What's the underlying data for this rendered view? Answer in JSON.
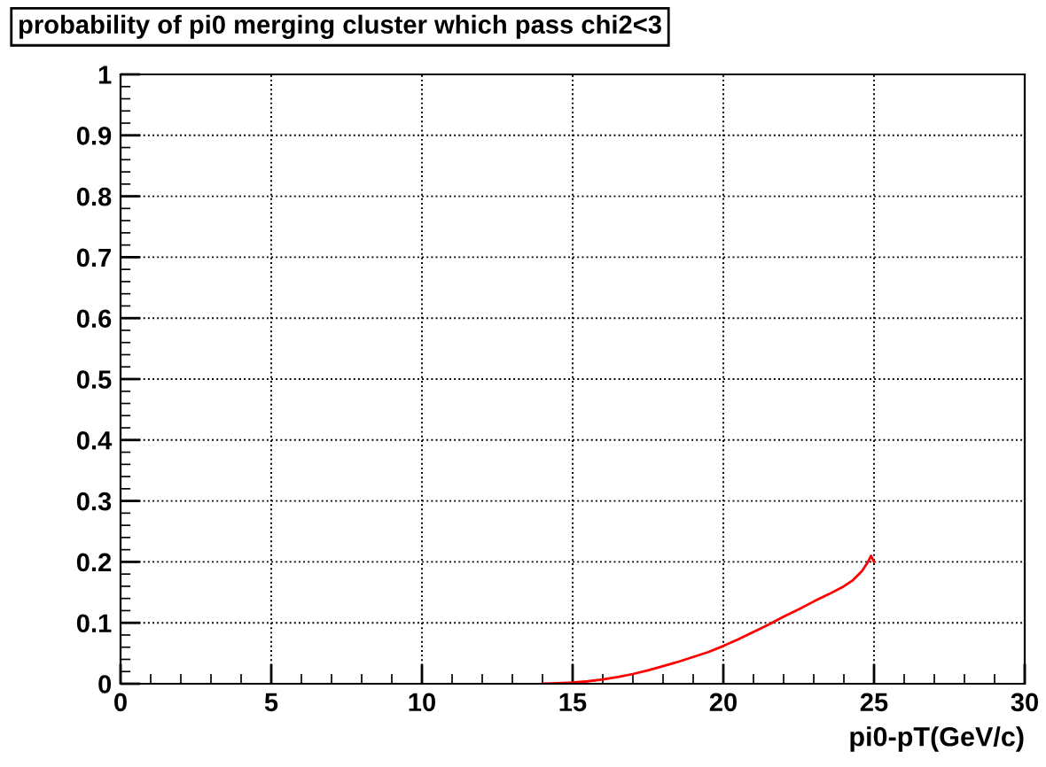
{
  "chart_data": {
    "type": "line",
    "title": "probability of pi0 merging cluster which pass chi2<3",
    "xlabel": "pi0-pT(GeV/c)",
    "x": [
      14,
      14.5,
      15,
      15.5,
      16,
      16.5,
      17,
      17.5,
      18,
      18.5,
      19,
      19.5,
      20,
      20.5,
      21,
      21.5,
      22,
      22.5,
      23,
      23.5,
      24,
      24.3,
      24.6,
      24.8,
      24.9,
      25
    ],
    "series": [
      {
        "color": "#ff0000",
        "values": [
          0,
          0.001,
          0.002,
          0.004,
          0.007,
          0.011,
          0.016,
          0.022,
          0.029,
          0.036,
          0.044,
          0.052,
          0.062,
          0.073,
          0.085,
          0.097,
          0.11,
          0.122,
          0.135,
          0.147,
          0.16,
          0.17,
          0.185,
          0.2,
          0.21,
          0.2
        ]
      }
    ],
    "xlim": [
      0,
      30
    ],
    "ylim": [
      0,
      1
    ],
    "xticks": [
      0,
      5,
      10,
      15,
      20,
      25,
      30
    ],
    "yticks": [
      0,
      0.1,
      0.2,
      0.3,
      0.4,
      0.5,
      0.6,
      0.7,
      0.8,
      0.9,
      1
    ],
    "grid": true
  }
}
